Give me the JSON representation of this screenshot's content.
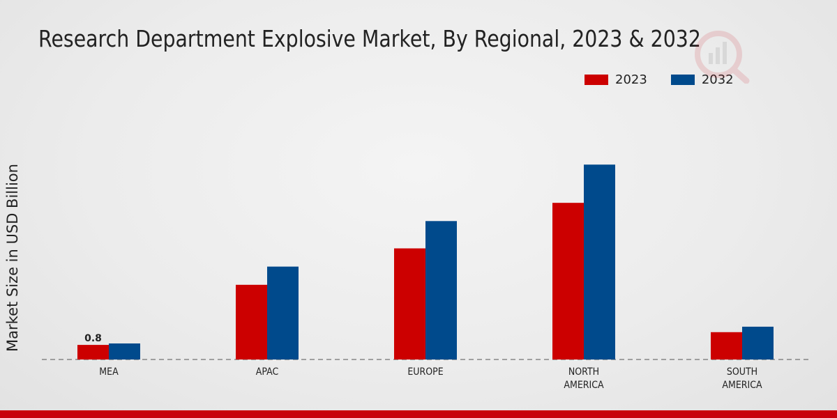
{
  "chart_data": {
    "type": "bar",
    "title": "Research Department Explosive Market, By Regional, 2023 & 2032",
    "xlabel": "",
    "ylabel": "Market Size in USD Billion",
    "categories": [
      [
        "MEA"
      ],
      [
        "APAC"
      ],
      [
        "EUROPE"
      ],
      [
        "NORTH",
        "AMERICA"
      ],
      [
        "SOUTH",
        "AMERICA"
      ]
    ],
    "series": [
      {
        "name": "2023",
        "color": "#cc0000",
        "values": [
          0.8,
          4.1,
          6.1,
          8.6,
          1.5
        ]
      },
      {
        "name": "2032",
        "color": "#004a8c",
        "values": [
          0.88,
          5.1,
          7.6,
          10.7,
          1.8
        ]
      }
    ],
    "data_labels": [
      {
        "series": 0,
        "index": 0,
        "text": "0.8"
      }
    ],
    "ylim": [
      0,
      14
    ],
    "legend_position": "top-right",
    "grid": false
  }
}
